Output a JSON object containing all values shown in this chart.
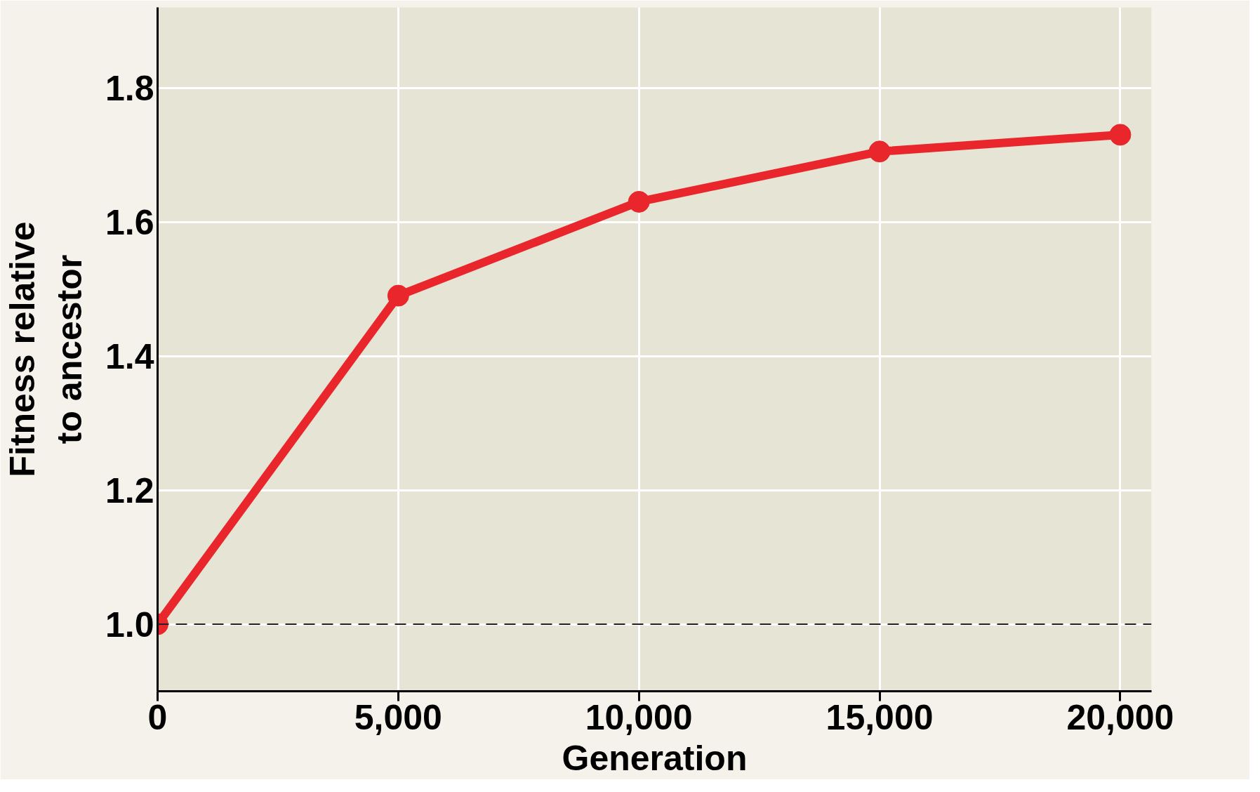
{
  "chart_data": {
    "type": "line",
    "xlabel": "Generation",
    "ylabel": "Fitness relative\nto ancestor",
    "x": [
      0,
      5000,
      10000,
      15000,
      20000
    ],
    "series": [
      {
        "color": "#e8262b",
        "values": [
          1.0,
          1.49,
          1.63,
          1.705,
          1.73
        ]
      }
    ],
    "xlim": [
      0,
      20650
    ],
    "ylim": [
      0.9,
      1.92
    ],
    "xticks": [
      0,
      {
        "value": 5000,
        "label": "5,000"
      },
      {
        "value": 10000,
        "label": "10,000"
      },
      {
        "value": 15000,
        "label": "15,000"
      },
      {
        "value": 20000,
        "label": "20,000"
      }
    ],
    "yticks": [
      {
        "value": 1.0,
        "label": "1.0"
      },
      1.2,
      1.4,
      1.6,
      1.8
    ],
    "ref_lines": [
      {
        "axis": "y",
        "value": 1.0,
        "color": "#222222",
        "line_style": "dashed"
      }
    ],
    "grid": true,
    "marker": "circle",
    "line_style": "solid"
  }
}
